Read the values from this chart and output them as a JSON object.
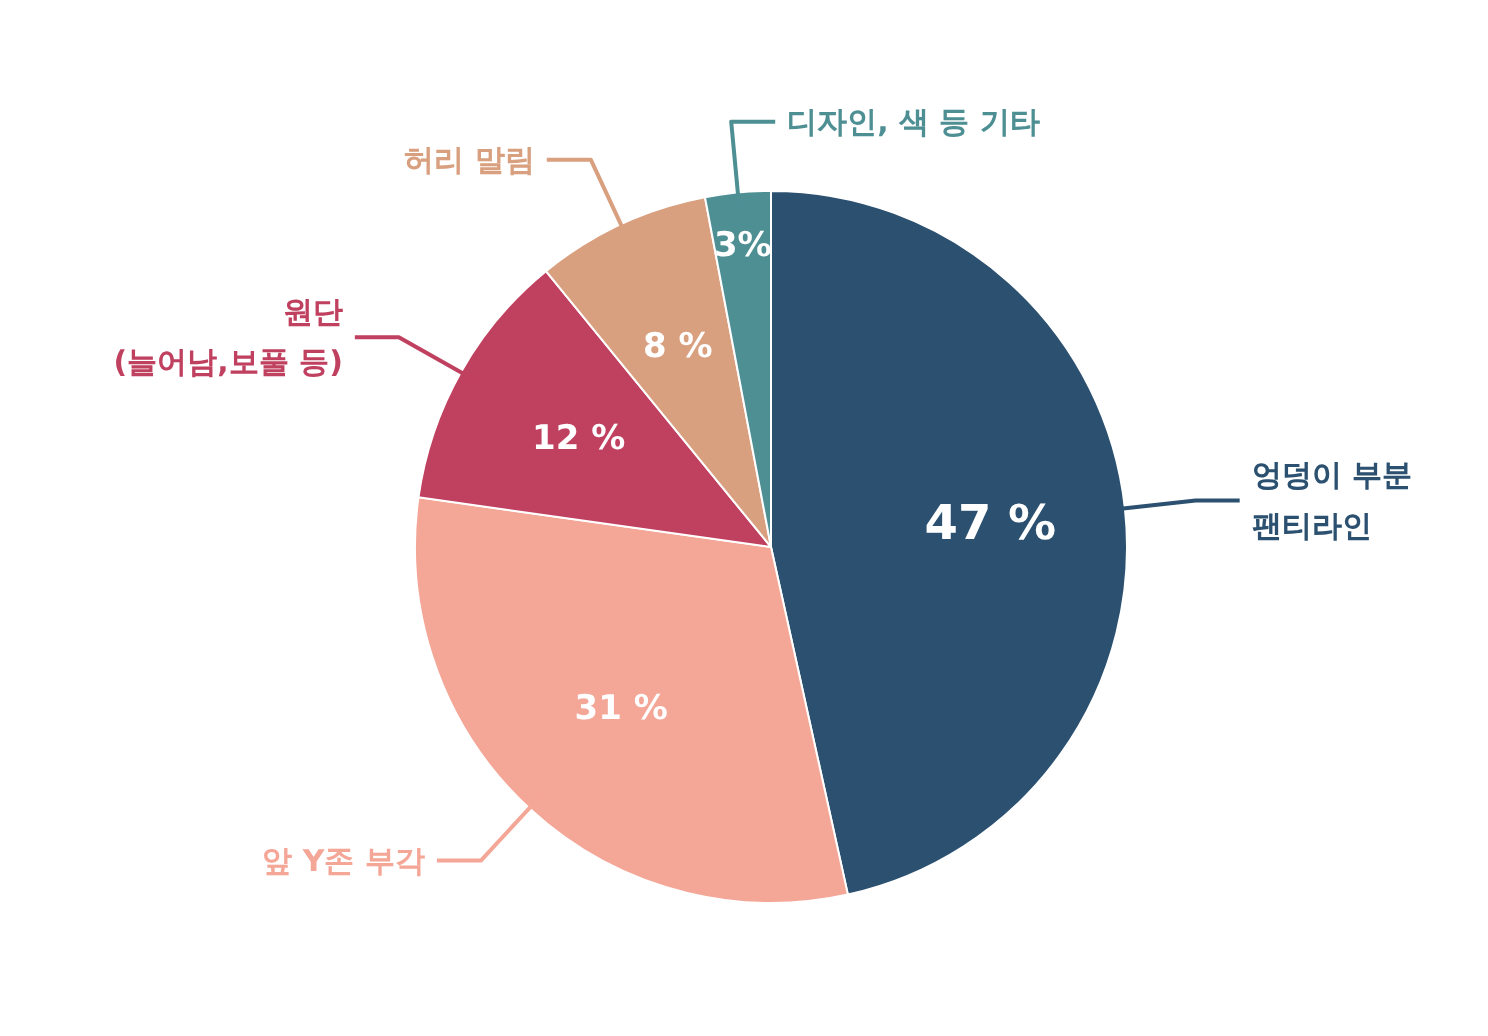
{
  "chart_data": {
    "type": "pie",
    "categories": [
      "엉덩이 부분\n팬티라인",
      "앞 Y존 부각",
      "원단\n(늘어남,보풀 등)",
      "허리 말림",
      "디자인, 색 등 기타"
    ],
    "values": [
      47,
      31,
      12,
      8,
      3
    ],
    "colors": [
      "#2b5070",
      "#f4a697",
      "#c0405f",
      "#d9a080",
      "#4e8f94"
    ],
    "value_labels": [
      "47 %",
      "31 %",
      "12 %",
      "8 %",
      "3%"
    ]
  }
}
